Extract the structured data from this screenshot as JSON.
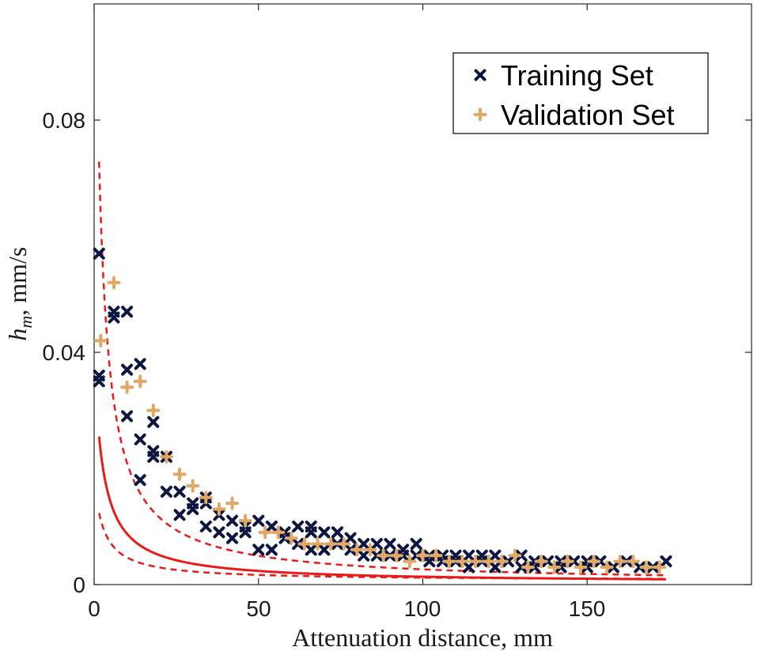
{
  "chart_data": {
    "type": "scatter",
    "title": "",
    "xlabel": "Attenuation distance, mm",
    "ylabel_main": "h",
    "ylabel_sub": "m",
    "ylabel_units": ", mm/s",
    "xlim": [
      0,
      200
    ],
    "ylim": [
      0,
      0.1
    ],
    "xticks": [
      0,
      50,
      100,
      150
    ],
    "xtick_labels": [
      "0",
      "50",
      "100",
      "150"
    ],
    "yticks": [
      0,
      0.04,
      0.08
    ],
    "ytick_labels": [
      "0",
      "0.04",
      "0.08"
    ],
    "legend_position": "top-right",
    "grid": false,
    "series": [
      {
        "name": "Training Set",
        "marker": "x",
        "color": "#0b1540",
        "points": [
          [
            1.5,
            0.057
          ],
          [
            1.5,
            0.036
          ],
          [
            1.5,
            0.035
          ],
          [
            6,
            0.047
          ],
          [
            6,
            0.046
          ],
          [
            10,
            0.047
          ],
          [
            10,
            0.037
          ],
          [
            10,
            0.029
          ],
          [
            14,
            0.038
          ],
          [
            14,
            0.025
          ],
          [
            14,
            0.018
          ],
          [
            18,
            0.028
          ],
          [
            18,
            0.022
          ],
          [
            18,
            0.023
          ],
          [
            22,
            0.022
          ],
          [
            22,
            0.016
          ],
          [
            26,
            0.016
          ],
          [
            26,
            0.012
          ],
          [
            30,
            0.013
          ],
          [
            30,
            0.014
          ],
          [
            30,
            0.013
          ],
          [
            34,
            0.015
          ],
          [
            34,
            0.014
          ],
          [
            34,
            0.01
          ],
          [
            38,
            0.012
          ],
          [
            38,
            0.009
          ],
          [
            42,
            0.011
          ],
          [
            42,
            0.008
          ],
          [
            46,
            0.01
          ],
          [
            46,
            0.009
          ],
          [
            50,
            0.011
          ],
          [
            50,
            0.006
          ],
          [
            54,
            0.01
          ],
          [
            54,
            0.01
          ],
          [
            54,
            0.006
          ],
          [
            58,
            0.009
          ],
          [
            58,
            0.008
          ],
          [
            62,
            0.01
          ],
          [
            62,
            0.007
          ],
          [
            66,
            0.01
          ],
          [
            66,
            0.009
          ],
          [
            66,
            0.006
          ],
          [
            70,
            0.009
          ],
          [
            70,
            0.006
          ],
          [
            74,
            0.009
          ],
          [
            74,
            0.007
          ],
          [
            78,
            0.008
          ],
          [
            78,
            0.006
          ],
          [
            82,
            0.007
          ],
          [
            82,
            0.005
          ],
          [
            86,
            0.007
          ],
          [
            86,
            0.005
          ],
          [
            90,
            0.007
          ],
          [
            90,
            0.005
          ],
          [
            94,
            0.006
          ],
          [
            94,
            0.005
          ],
          [
            98,
            0.007
          ],
          [
            98,
            0.005
          ],
          [
            102,
            0.005
          ],
          [
            102,
            0.004
          ],
          [
            106,
            0.005
          ],
          [
            106,
            0.004
          ],
          [
            110,
            0.005
          ],
          [
            110,
            0.004
          ],
          [
            114,
            0.005
          ],
          [
            114,
            0.003
          ],
          [
            118,
            0.005
          ],
          [
            118,
            0.004
          ],
          [
            122,
            0.005
          ],
          [
            122,
            0.003
          ],
          [
            126,
            0.004
          ],
          [
            130,
            0.005
          ],
          [
            130,
            0.003
          ],
          [
            134,
            0.004
          ],
          [
            134,
            0.003
          ],
          [
            138,
            0.004
          ],
          [
            142,
            0.004
          ],
          [
            142,
            0.003
          ],
          [
            146,
            0.004
          ],
          [
            150,
            0.004
          ],
          [
            150,
            0.003
          ],
          [
            154,
            0.004
          ],
          [
            158,
            0.003
          ],
          [
            162,
            0.004
          ],
          [
            166,
            0.003
          ],
          [
            170,
            0.003
          ],
          [
            174,
            0.004
          ]
        ]
      },
      {
        "name": "Validation Set",
        "marker": "+",
        "color": "#e0a866",
        "points": [
          [
            2,
            0.042
          ],
          [
            6,
            0.052
          ],
          [
            10,
            0.034
          ],
          [
            14,
            0.035
          ],
          [
            18,
            0.03
          ],
          [
            22,
            0.022
          ],
          [
            26,
            0.019
          ],
          [
            30,
            0.017
          ],
          [
            34,
            0.015
          ],
          [
            38,
            0.013
          ],
          [
            42,
            0.014
          ],
          [
            46,
            0.011
          ],
          [
            52,
            0.009
          ],
          [
            56,
            0.009
          ],
          [
            60,
            0.008
          ],
          [
            64,
            0.007
          ],
          [
            68,
            0.007
          ],
          [
            72,
            0.007
          ],
          [
            76,
            0.007
          ],
          [
            80,
            0.006
          ],
          [
            84,
            0.006
          ],
          [
            88,
            0.005
          ],
          [
            92,
            0.005
          ],
          [
            96,
            0.004
          ],
          [
            100,
            0.005
          ],
          [
            104,
            0.005
          ],
          [
            108,
            0.004
          ],
          [
            112,
            0.004
          ],
          [
            116,
            0.004
          ],
          [
            120,
            0.004
          ],
          [
            124,
            0.004
          ],
          [
            128,
            0.005
          ],
          [
            132,
            0.003
          ],
          [
            136,
            0.004
          ],
          [
            140,
            0.003
          ],
          [
            144,
            0.004
          ],
          [
            148,
            0.003
          ],
          [
            152,
            0.004
          ],
          [
            156,
            0.003
          ],
          [
            160,
            0.004
          ],
          [
            164,
            0.004
          ],
          [
            168,
            0.003
          ],
          [
            172,
            0.003
          ]
        ]
      }
    ],
    "fit_curve": {
      "name": "fit",
      "color": "#e81a1a",
      "style": "solid",
      "a": 0.1081,
      "b": 2.79,
      "c": 0.3,
      "x_start": 1.5,
      "x_end": 174
    },
    "bound_curves": [
      {
        "name": "upper-bound",
        "color": "#e81a1a",
        "style": "dashed",
        "a": 0.247,
        "b": 1.9,
        "c": 0.2,
        "x_start": 1.5,
        "x_end": 174
      },
      {
        "name": "lower-bound",
        "color": "#e81a1a",
        "style": "dashed",
        "a": 0.0512,
        "b": 2.9,
        "c": 0.7,
        "x_start": 1.5,
        "x_end": 174
      }
    ]
  }
}
